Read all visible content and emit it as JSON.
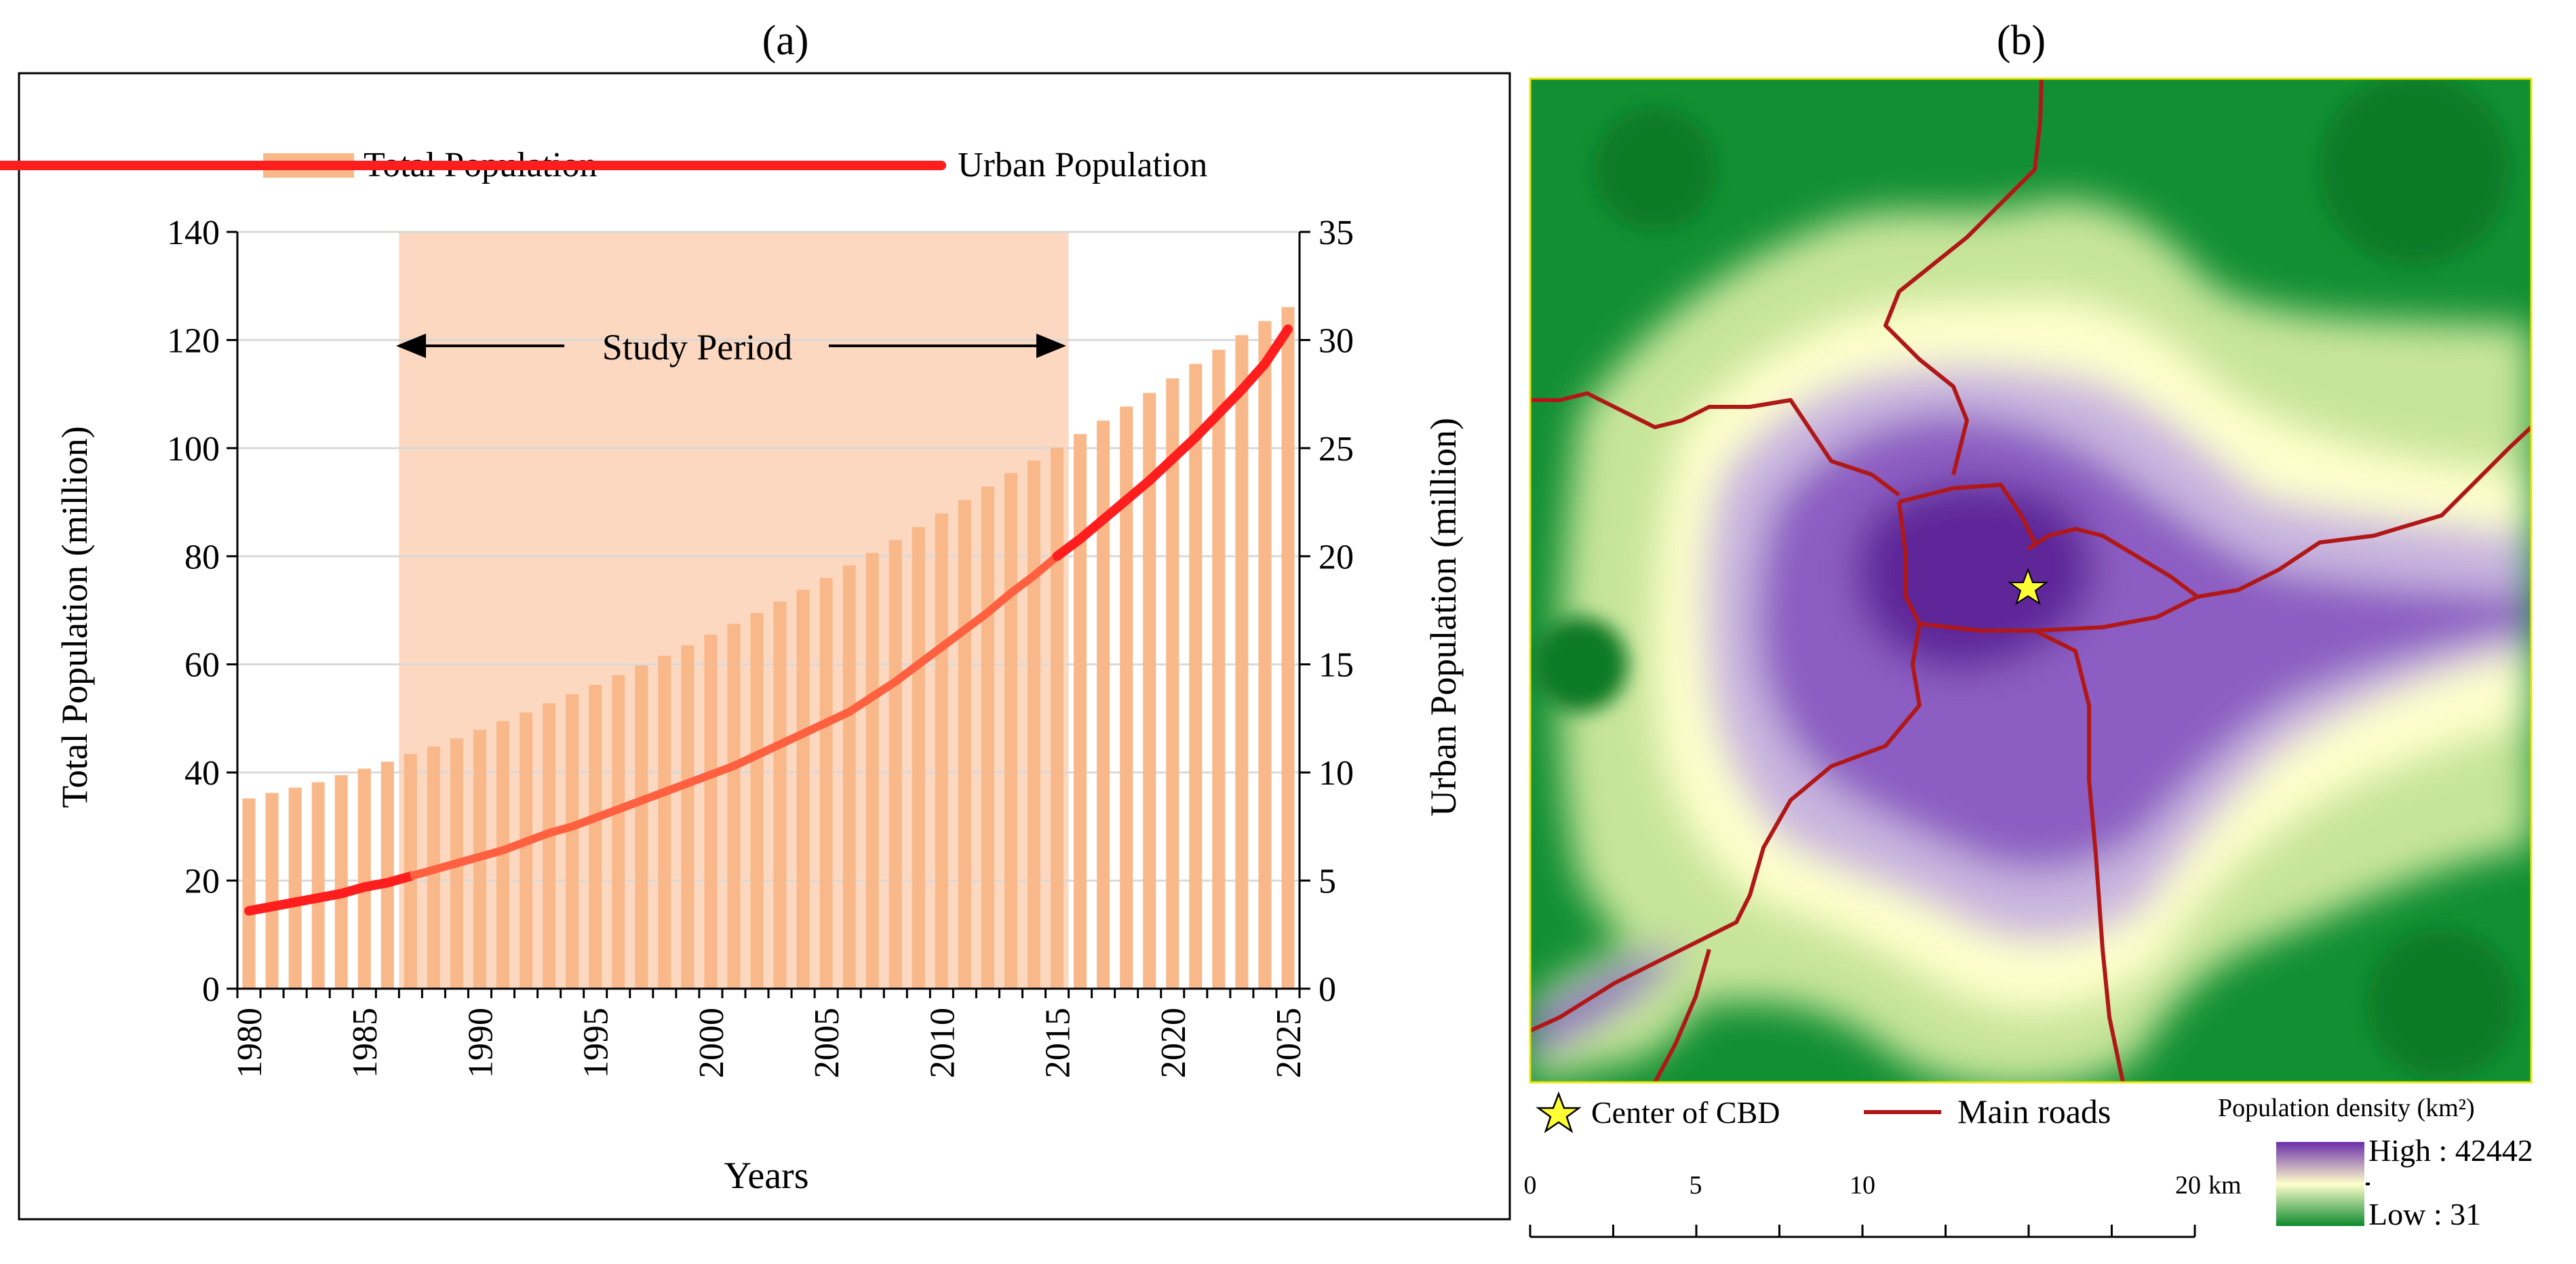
{
  "panel_a": {
    "label": "(a)",
    "legend": {
      "bar_label": "Total Population",
      "line_label": "Urban Population"
    },
    "annotation": "Study Period",
    "colors": {
      "bar": "#F9B88A",
      "shade": "#FCD8C0",
      "line": "#FF1E1E",
      "line_faded": "#FF6040",
      "grid": "#D9D9D9"
    }
  },
  "panel_b": {
    "label": "(b)",
    "legend": {
      "cbd_label": "Center of CBD",
      "roads_label": "Main roads",
      "density_title": "Population  density  (km²)",
      "high_label": "High : 42442",
      "low_label": "Low : 31"
    },
    "scalebar": {
      "ticks": [
        "0",
        "5",
        "10",
        "20"
      ],
      "unit": "km"
    },
    "colors": {
      "high": "#6A2EA8",
      "mid": "#FFFFCC",
      "low": "#0E8A2E",
      "road": "#B01818",
      "star": "#FFFF33"
    }
  },
  "chart_data": {
    "type": "bar",
    "title": "",
    "xlabel": "Years",
    "ylabel": "Total Population (million)",
    "y2label": "Urban Population (million)",
    "ylim": [
      0,
      140
    ],
    "y2lim": [
      0,
      35
    ],
    "yticks": [
      0,
      20,
      40,
      60,
      80,
      100,
      120,
      140
    ],
    "y2ticks": [
      0,
      5,
      10,
      15,
      20,
      25,
      30,
      35
    ],
    "xticks": [
      1980,
      1985,
      1990,
      1995,
      2000,
      2005,
      2010,
      2015,
      2020,
      2025
    ],
    "study_period": [
      1986.5,
      2015.5
    ],
    "categories": [
      1980,
      1981,
      1982,
      1983,
      1984,
      1985,
      1986,
      1987,
      1988,
      1989,
      1990,
      1991,
      1992,
      1993,
      1994,
      1995,
      1996,
      1997,
      1998,
      1999,
      2000,
      2001,
      2002,
      2003,
      2004,
      2005,
      2006,
      2007,
      2008,
      2009,
      2010,
      2011,
      2012,
      2013,
      2014,
      2015,
      2016,
      2017,
      2018,
      2019,
      2020,
      2021,
      2022,
      2023,
      2024,
      2025
    ],
    "series": [
      {
        "name": "Total Population",
        "axis": "left",
        "kind": "bar",
        "values": [
          35.2,
          36.2,
          37.2,
          38.2,
          39.5,
          40.7,
          42.0,
          43.4,
          44.8,
          46.3,
          47.9,
          49.5,
          51.1,
          52.8,
          54.5,
          56.2,
          58.0,
          59.8,
          61.6,
          63.5,
          65.5,
          67.5,
          69.5,
          71.6,
          73.8,
          76.0,
          78.3,
          80.6,
          83.0,
          85.4,
          87.9,
          90.4,
          92.9,
          95.4,
          97.7,
          100.1,
          102.6,
          105.1,
          107.7,
          110.2,
          112.9,
          115.6,
          118.2,
          120.9,
          123.5,
          126.1
        ]
      },
      {
        "name": "Urban Population",
        "axis": "right",
        "kind": "line",
        "values": [
          3.6,
          3.8,
          4.0,
          4.2,
          4.4,
          4.7,
          4.9,
          5.2,
          5.5,
          5.8,
          6.1,
          6.4,
          6.8,
          7.2,
          7.5,
          7.9,
          8.3,
          8.7,
          9.1,
          9.5,
          9.9,
          10.3,
          10.8,
          11.3,
          11.8,
          12.3,
          12.8,
          13.5,
          14.2,
          15.0,
          15.8,
          16.6,
          17.4,
          18.3,
          19.1,
          20.0,
          20.8,
          21.7,
          22.6,
          23.5,
          24.5,
          25.5,
          26.6,
          27.7,
          28.9,
          30.5
        ]
      }
    ]
  }
}
